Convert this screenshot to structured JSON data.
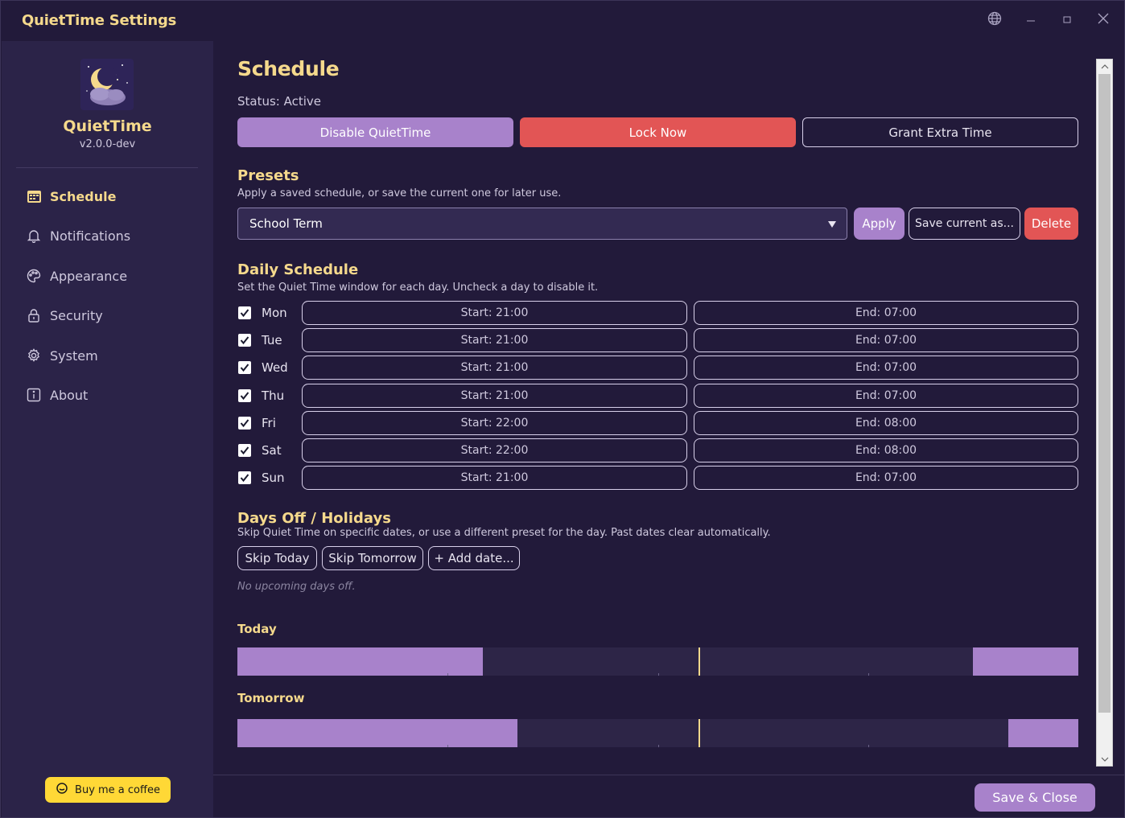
{
  "window": {
    "title": "QuietTime Settings"
  },
  "sidebar": {
    "brand_name": "QuietTime",
    "version": "v2.0.0-dev",
    "items": [
      {
        "label": "Schedule",
        "icon": "calendar-icon",
        "active": true
      },
      {
        "label": "Notifications",
        "icon": "bell-icon",
        "active": false
      },
      {
        "label": "Appearance",
        "icon": "palette-icon",
        "active": false
      },
      {
        "label": "Security",
        "icon": "lock-icon",
        "active": false
      },
      {
        "label": "System",
        "icon": "gear-icon",
        "active": false
      },
      {
        "label": "About",
        "icon": "info-icon",
        "active": false
      }
    ],
    "coffee_label": "Buy me a coffee"
  },
  "schedule": {
    "title": "Schedule",
    "status": "Status: Active",
    "disable_label": "Disable QuietTime",
    "lock_label": "Lock Now",
    "grant_label": "Grant Extra Time"
  },
  "presets": {
    "title": "Presets",
    "description": "Apply a saved schedule, or save the current one for later use.",
    "selected": "School Term",
    "apply_label": "Apply",
    "save_label": "Save current as...",
    "delete_label": "Delete"
  },
  "daily": {
    "title": "Daily Schedule",
    "description": "Set the Quiet Time window for each day. Uncheck a day to disable it.",
    "days": [
      {
        "day": "Mon",
        "checked": true,
        "start": "Start: 21:00",
        "end": "End: 07:00"
      },
      {
        "day": "Tue",
        "checked": true,
        "start": "Start: 21:00",
        "end": "End: 07:00"
      },
      {
        "day": "Wed",
        "checked": true,
        "start": "Start: 21:00",
        "end": "End: 07:00"
      },
      {
        "day": "Thu",
        "checked": true,
        "start": "Start: 21:00",
        "end": "End: 07:00"
      },
      {
        "day": "Fri",
        "checked": true,
        "start": "Start: 22:00",
        "end": "End: 08:00"
      },
      {
        "day": "Sat",
        "checked": true,
        "start": "Start: 22:00",
        "end": "End: 08:00"
      },
      {
        "day": "Sun",
        "checked": true,
        "start": "Start: 21:00",
        "end": "End: 07:00"
      }
    ]
  },
  "days_off": {
    "title": "Days Off / Holidays",
    "description": "Skip Quiet Time on specific dates, or use a different preset for the day. Past dates clear automatically.",
    "skip_today_label": "Skip Today",
    "skip_tomorrow_label": "Skip Tomorrow",
    "add_date_label": "+ Add date...",
    "empty_note": "No upcoming days off."
  },
  "timelines": {
    "today": {
      "label": "Today",
      "quiet_end_hour": 7,
      "quiet_start_hour": 21,
      "now_hour": 13.15
    },
    "tomorrow": {
      "label": "Tomorrow",
      "quiet_end_hour": 8,
      "quiet_start_hour": 22,
      "now_hour": 13.15
    }
  },
  "footer": {
    "save_close_label": "Save & Close"
  },
  "colors": {
    "accent": "#a882cb",
    "danger": "#e25555",
    "heading": "#f5d98c",
    "background": "#221a3a",
    "sidebar": "#2b2348"
  }
}
